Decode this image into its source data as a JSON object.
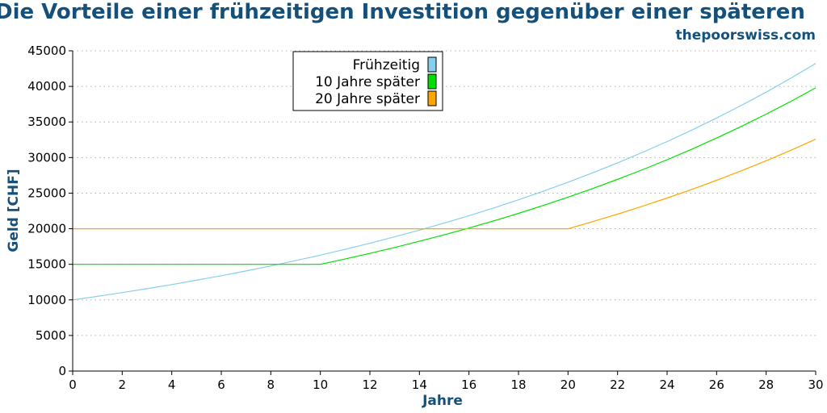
{
  "chart_data": {
    "type": "line",
    "title": "Die Vorteile einer frühzeitigen Investition gegenüber einer späteren",
    "subtitle": "thepoorswiss.com",
    "xlabel": "Jahre",
    "ylabel": "Geld [CHF]",
    "xlim": [
      0,
      30
    ],
    "ylim": [
      0,
      45000
    ],
    "xticks": [
      0,
      2,
      4,
      6,
      8,
      10,
      12,
      14,
      16,
      18,
      20,
      22,
      24,
      26,
      28,
      30
    ],
    "yticks": [
      0,
      5000,
      10000,
      15000,
      20000,
      25000,
      30000,
      35000,
      40000,
      45000
    ],
    "grid": "horizontal dotted",
    "legend_position": "top-center",
    "x": [
      0,
      1,
      2,
      3,
      4,
      5,
      6,
      7,
      8,
      9,
      10,
      11,
      12,
      13,
      14,
      15,
      16,
      17,
      18,
      19,
      20,
      21,
      22,
      23,
      24,
      25,
      26,
      27,
      28,
      29,
      30
    ],
    "series": [
      {
        "name": "Frühzeitig",
        "color": "#87ceeb",
        "values": [
          10000,
          10500,
          11025,
          11576,
          12155,
          12763,
          13401,
          14071,
          14775,
          15513,
          16289,
          17103,
          17959,
          18856,
          19799,
          20789,
          21829,
          22920,
          24066,
          25270,
          26533,
          27860,
          29253,
          30715,
          32251,
          33864,
          35557,
          37335,
          39201,
          41161,
          43219
        ]
      },
      {
        "name": "10 Jahre später",
        "color": "#00e000",
        "values": [
          15000,
          15000,
          15000,
          15000,
          15000,
          15000,
          15000,
          15000,
          15000,
          15000,
          15000,
          15750,
          16538,
          17364,
          18233,
          19144,
          20101,
          21107,
          22162,
          23270,
          24433,
          25655,
          26938,
          28285,
          29699,
          31184,
          32743,
          34381,
          36100,
          37905,
          39800
        ]
      },
      {
        "name": "20 Jahre später",
        "color": "#ffa500",
        "values": [
          20000,
          20000,
          20000,
          20000,
          20000,
          20000,
          20000,
          20000,
          20000,
          20000,
          20000,
          20000,
          20000,
          20000,
          20000,
          20000,
          20000,
          20000,
          20000,
          20000,
          20000,
          21000,
          22050,
          23153,
          24310,
          25526,
          26802,
          28142,
          29549,
          31027,
          32578
        ]
      }
    ]
  }
}
